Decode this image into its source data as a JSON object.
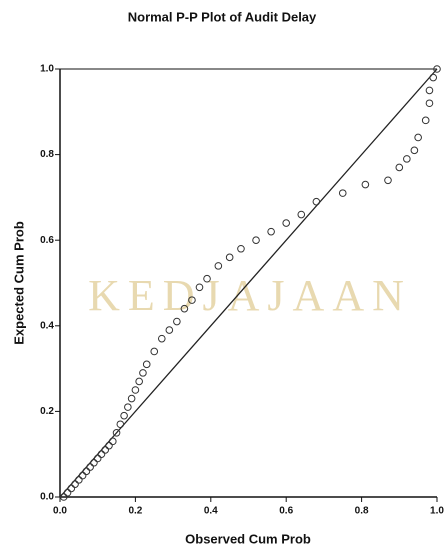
{
  "chart_data": {
    "type": "scatter",
    "title": "Normal P-P Plot of Audit Delay",
    "x_label": "Observed Cum Prob",
    "y_label": "Expected Cum Prob",
    "watermark": "KEDJAJAAN",
    "color": "#333333",
    "x": [
      0.01,
      0.02,
      0.03,
      0.04,
      0.05,
      0.06,
      0.07,
      0.08,
      0.09,
      0.1,
      0.11,
      0.12,
      0.13,
      0.14,
      0.15,
      0.16,
      0.17,
      0.18,
      0.19,
      0.2,
      0.21,
      0.22,
      0.23,
      0.25,
      0.27,
      0.29,
      0.31,
      0.33,
      0.35,
      0.37,
      0.39,
      0.42,
      0.45,
      0.48,
      0.52,
      0.56,
      0.6,
      0.64,
      0.68,
      0.75,
      0.81,
      0.87,
      0.9,
      0.92,
      0.94,
      0.95,
      0.97,
      0.98,
      0.98,
      0.99,
      1.0
    ],
    "values": [
      0.0,
      0.01,
      0.02,
      0.03,
      0.04,
      0.05,
      0.06,
      0.07,
      0.08,
      0.09,
      0.1,
      0.11,
      0.12,
      0.13,
      0.15,
      0.17,
      0.19,
      0.21,
      0.23,
      0.25,
      0.27,
      0.29,
      0.31,
      0.34,
      0.37,
      0.39,
      0.41,
      0.44,
      0.46,
      0.49,
      0.51,
      0.54,
      0.56,
      0.58,
      0.6,
      0.62,
      0.64,
      0.66,
      0.69,
      0.71,
      0.73,
      0.74,
      0.77,
      0.79,
      0.81,
      0.84,
      0.88,
      0.92,
      0.95,
      0.98,
      1.0
    ],
    "xlim": [
      0,
      1
    ],
    "ylim": [
      0,
      1
    ],
    "xticks": [
      {
        "value": 0,
        "label": "0.0"
      },
      0.2,
      0.4,
      0.6,
      0.8,
      {
        "value": 1,
        "label": "1.0"
      }
    ],
    "yticks": [
      {
        "value": 0,
        "label": "0.0"
      },
      0.2,
      0.4,
      0.6,
      0.8,
      {
        "value": 1,
        "label": "1.0"
      }
    ],
    "reference_line": true
  }
}
